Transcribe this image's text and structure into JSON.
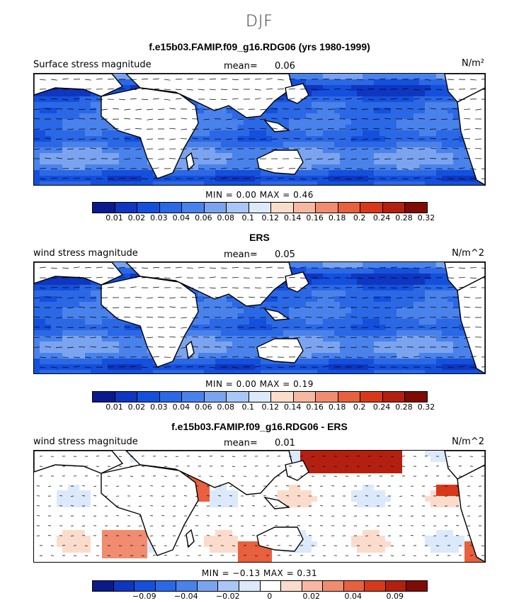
{
  "figure": {
    "title": "DJF",
    "colors_positive": [
      "#0a1a8c",
      "#0f36c0",
      "#1450dc",
      "#2b68e6",
      "#4a82ec",
      "#7aa4f0",
      "#a9c6f6",
      "#dbe9fb",
      "#fbdccc",
      "#f6b8a0",
      "#f08c70",
      "#e8603e",
      "#d8381a",
      "#b42010",
      "#800a04"
    ],
    "colors_diff": [
      "#0a1a8c",
      "#0f36c0",
      "#1450dc",
      "#2b68e6",
      "#4a82ec",
      "#7aa4f0",
      "#a9c6f6",
      "#dbe9fb",
      "#ffffff",
      "#fbdccc",
      "#f6b8a0",
      "#f08c70",
      "#e8603e",
      "#d8381a",
      "#b42010",
      "#800a04"
    ],
    "continent_color": "#ffffff",
    "vector_color": "#000000"
  },
  "chart_data": [
    {
      "type": "heatmap",
      "title": "f.e15b03.FAMIP.f09_g16.RDG06 (yrs 1980-1999)",
      "label": "Surface stress magnitude",
      "mean_label": "mean=",
      "mean": "0.06",
      "units": "N/m²",
      "minmax": "MIN =    0.00 MAX =    0.46",
      "colorbar_ticks": [
        "0.01",
        "0.02",
        "0.03",
        "0.04",
        "0.06",
        "0.08",
        "0.1",
        "0.12",
        "0.14",
        "0.16",
        "0.18",
        "0.2",
        "0.24",
        "0.28",
        "0.32"
      ]
    },
    {
      "type": "heatmap",
      "title": "ERS",
      "label": "wind stress magnitude",
      "mean_label": "mean=",
      "mean": "0.05",
      "units": "N/m^2",
      "minmax": "MIN =    0.00 MAX =    0.19",
      "colorbar_ticks": [
        "0.01",
        "0.02",
        "0.03",
        "0.04",
        "0.06",
        "0.08",
        "0.1",
        "0.12",
        "0.14",
        "0.16",
        "0.18",
        "0.2",
        "0.24",
        "0.28",
        "0.32"
      ]
    },
    {
      "type": "heatmap",
      "title": "f.e15b03.FAMIP.f09_g16.RDG06 - ERS",
      "label": "wind stress magnitude",
      "mean_label": "mean=",
      "mean": "0.01",
      "units": "N/m^2",
      "minmax": "MIN = −0.13 MAX =    0.31",
      "colorbar_ticks": [
        "−0.09",
        "−0.04",
        "−0.02",
        "0",
        "0.02",
        "0.04",
        "0.09"
      ]
    }
  ]
}
